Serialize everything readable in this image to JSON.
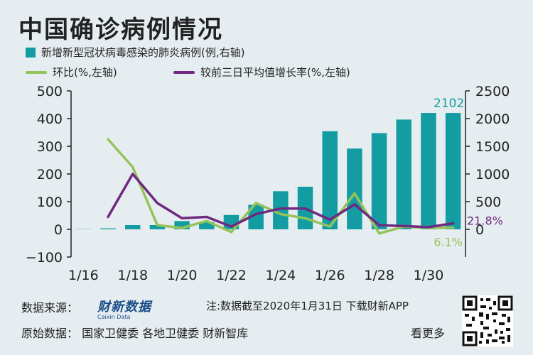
{
  "title": "中国确诊病例情况",
  "legend": {
    "bar": "新增新型冠状病毒感染的肺炎病例(例,右轴)",
    "line1": "环比(%,左轴)",
    "line2": "较前三日平均值增长率(%,左轴)"
  },
  "colors": {
    "bar": "#139da3",
    "line1": "#94c35a",
    "line2": "#6e2a80",
    "background": "#e6edf0"
  },
  "chart_data": {
    "type": "bar",
    "x": [
      "1/16",
      "1/17",
      "1/18",
      "1/19",
      "1/20",
      "1/21",
      "1/22",
      "1/23",
      "1/24",
      "1/25",
      "1/26",
      "1/27",
      "1/28",
      "1/29",
      "1/30",
      "1/31"
    ],
    "x_tick_labels": [
      "1/16",
      "1/18",
      "1/20",
      "1/22",
      "1/24",
      "1/26",
      "1/28",
      "1/30"
    ],
    "series": [
      {
        "name": "新增新型冠状病毒感染的肺炎病例(例,右轴)",
        "type": "bar",
        "axis": "right",
        "values": [
          4,
          17,
          77,
          77,
          149,
          131,
          259,
          444,
          688,
          769,
          1771,
          1459,
          1737,
          1982,
          2102,
          2102
        ]
      },
      {
        "name": "环比(%,左轴)",
        "type": "line",
        "axis": "left",
        "values": [
          null,
          325,
          225,
          15,
          5,
          30,
          -10,
          95,
          55,
          40,
          10,
          130,
          -15,
          10,
          5,
          6.1
        ]
      },
      {
        "name": "较前三日平均值增长率(%,左轴)",
        "type": "line",
        "axis": "left",
        "values": [
          null,
          45,
          200,
          95,
          40,
          45,
          10,
          55,
          75,
          75,
          35,
          90,
          15,
          12,
          8,
          21.8
        ]
      }
    ],
    "y_left": {
      "ticks": [
        "500",
        "400",
        "300",
        "200",
        "100",
        "0",
        "−100"
      ],
      "lim": [
        -100,
        500
      ]
    },
    "y_right": {
      "ticks": [
        "2500",
        "2000",
        "1500",
        "1000",
        "500",
        "0"
      ],
      "lim": [
        -500,
        2500
      ]
    },
    "annotations": {
      "bar_last": "2102",
      "line2_last": "21.8%",
      "line1_last": "6.1%"
    }
  },
  "footer": {
    "source_label": "数据来源：",
    "logo_text": "财新数据",
    "logo_sub": "Caixin Data",
    "note": "注:数据截至2020年1月31日 下载财新APP",
    "origin": "原始数据：  国家卫健委  各地卫健委  财新智库",
    "more": "看更多"
  }
}
